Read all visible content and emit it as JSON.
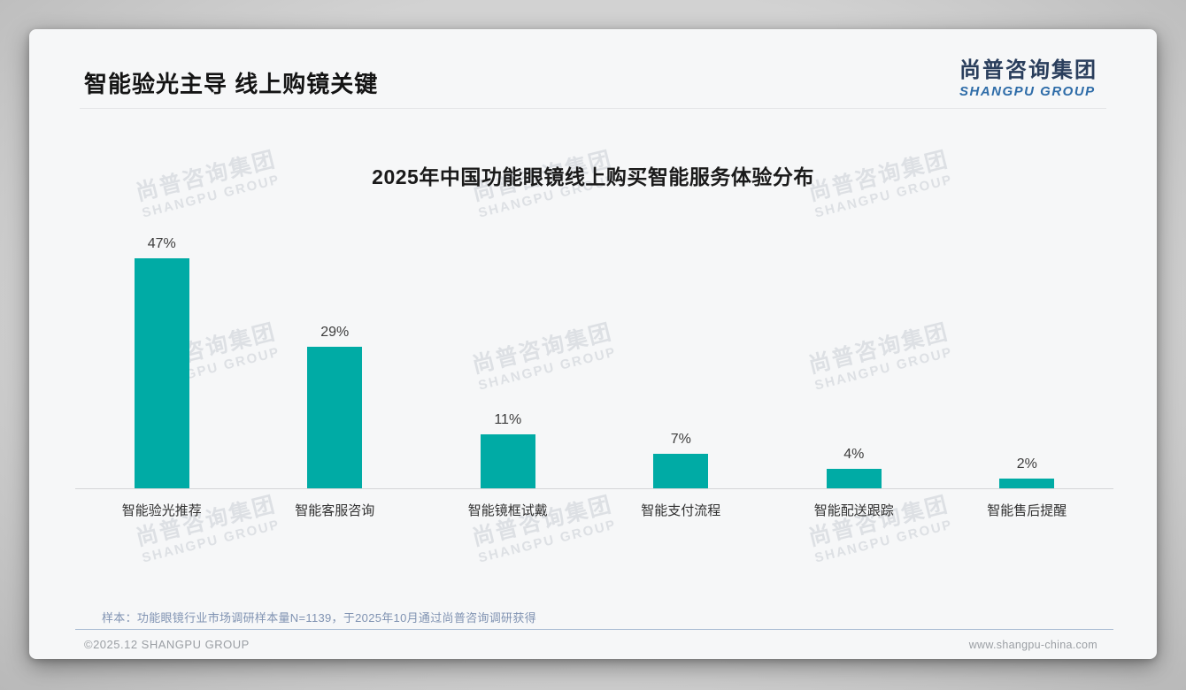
{
  "page": {
    "title": "智能验光主导 线上购镜关键",
    "logo": {
      "cn": "尚普咨询集团",
      "en": "SHANGPU GROUP"
    },
    "watermark": {
      "cn": "尚普咨询集团",
      "en": "SHANGPU GROUP"
    },
    "note": "样本：功能眼镜行业市场调研样本量N=1139，于2025年10月通过尚普咨询调研获得",
    "footer": {
      "left": "©2025.12 SHANGPU GROUP",
      "right": "www.shangpu-china.com"
    }
  },
  "colors": {
    "bar": "#00aba5",
    "logo_cn": "#2a3e5c",
    "logo_en": "#2e6ca8",
    "note_text": "#8093b2",
    "card_bg": "#f6f7f8"
  },
  "chart_data": {
    "type": "bar",
    "title": "2025年中国功能眼镜线上购买智能服务体验分布",
    "categories": [
      "智能验光推荐",
      "智能客服咨询",
      "智能镜框试戴",
      "智能支付流程",
      "智能配送跟踪",
      "智能售后提醒"
    ],
    "values": [
      47,
      29,
      11,
      7,
      4,
      2
    ],
    "value_labels": [
      "47%",
      "29%",
      "11%",
      "7%",
      "4%",
      "2%"
    ],
    "unit": "%",
    "xlabel": "",
    "ylabel": "",
    "ylim": [
      0,
      50
    ],
    "grid": false,
    "legend": null,
    "bar_color": "#00aba5"
  }
}
